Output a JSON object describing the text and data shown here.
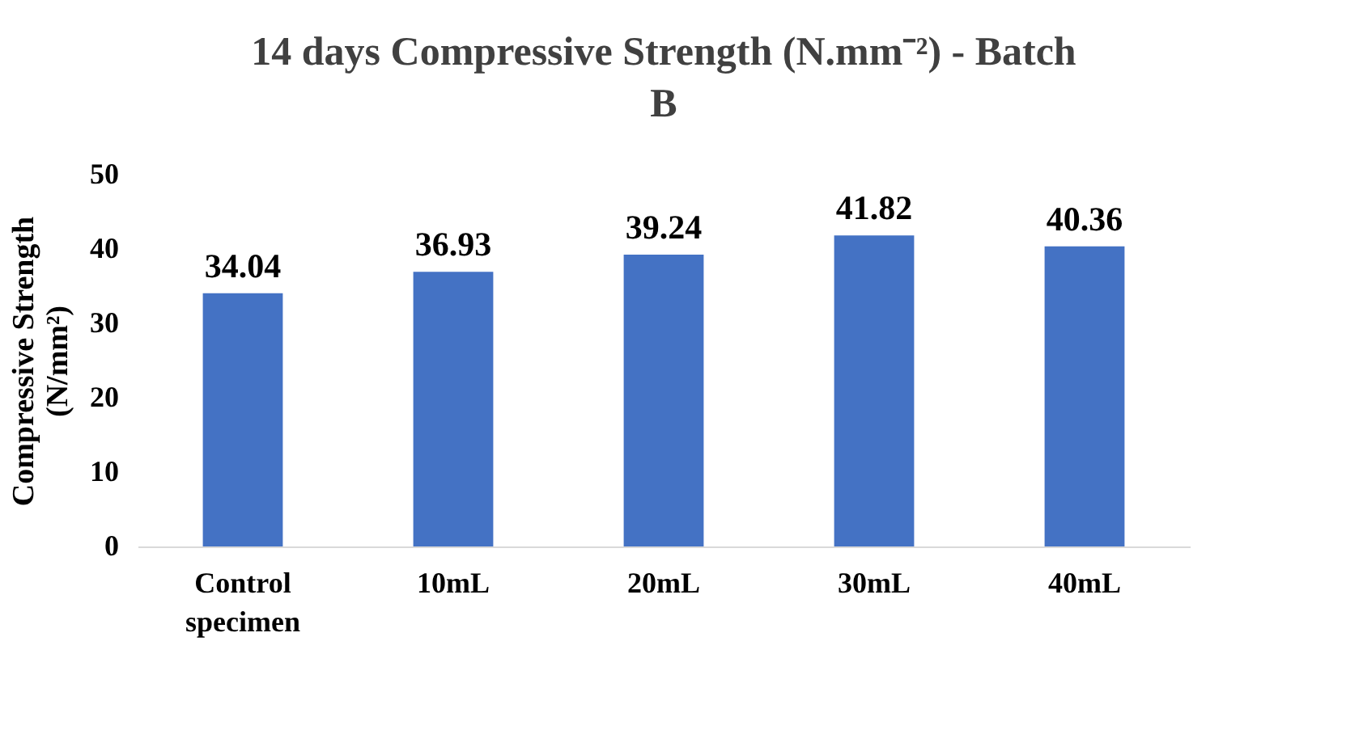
{
  "chart_data": {
    "type": "bar",
    "title": "14 days Compressive Strength (N.mm⁻²) - Batch B",
    "ylabel": "Compressive Strength (N/mm²)",
    "categories": [
      "Control specimen",
      "10mL",
      "20mL",
      "30mL",
      "40mL"
    ],
    "values": [
      34.04,
      36.93,
      39.24,
      41.82,
      40.36
    ],
    "color": "#4472c4",
    "ylim": [
      0,
      50
    ],
    "yticks": [
      0,
      10,
      20,
      30,
      40,
      50
    ],
    "grid": false,
    "data_labels": true
  }
}
